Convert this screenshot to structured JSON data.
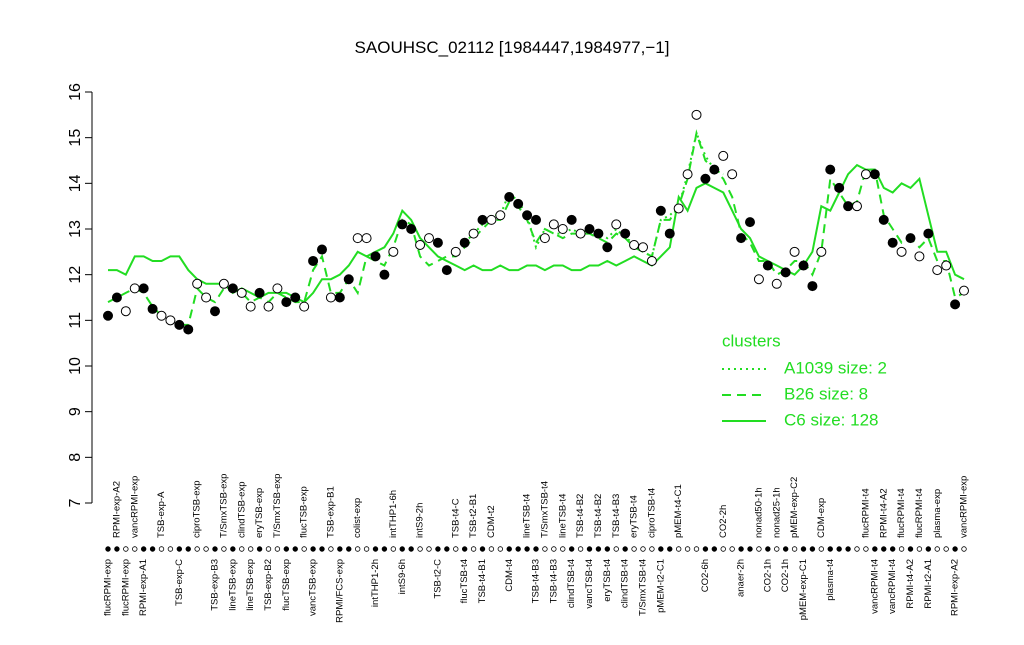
{
  "chart_data": {
    "type": "scatter",
    "title": "SAOUHSC_02112 [1984447,1984977,−1]",
    "ylim": [
      7,
      16
    ],
    "yticks": [
      7,
      8,
      9,
      10,
      11,
      12,
      13,
      14,
      15,
      16
    ],
    "categories": [
      "flucRPMI-exp",
      "RPMI-exp-A2",
      "flucRPMI-exp",
      "vancRPMI-exp",
      "RPMI-exp-A1",
      null,
      "TSB-exp-A",
      null,
      "TSB-exp-C",
      null,
      "ciproTSB-exp",
      null,
      "TSB-exp-B3",
      "T/SmxTSB-exp",
      "lineTSB-exp",
      "clindTSB-exp",
      "lineTSB-exp",
      "eryTSB-exp",
      "TSB-exp-B2",
      "T/SmxTSB-exp",
      "flucTSB-exp",
      null,
      "flucTSB-exp",
      "vancTSB-exp",
      null,
      "TSB-exp-B1",
      "RPMI/FCS-exp",
      null,
      "colist-exp",
      null,
      "intTHP1-2h",
      null,
      "intTHP1-6h",
      "intS9-6h",
      null,
      "intS9-2h",
      null,
      "TSB-t2-C",
      null,
      "TSB-t4-C",
      "flucTSB-t4",
      "TSB-t2-B1",
      "TSB-t4-B1",
      "CDM-t2",
      null,
      "CDM-t4",
      null,
      "lineTSB-t4",
      "TSB-t4-B3",
      "T/SmxTSB-t4",
      "TSB-t4-B3",
      "lineTSB-t4",
      "clindTSB-t4",
      "TSB-t4-B2",
      "vancTSB-t4",
      "TSB-t4-B2",
      "eryTSB-t4",
      "TSB-t4-B3",
      "clindTSB-t4",
      "eryTSB-t4",
      "T/SmxTSB-t4",
      "ciproTSB-t4",
      "pMEM-t2-C1",
      null,
      "pMEM-t4-C1",
      null,
      null,
      "CO2-6h",
      null,
      "CO2-2h",
      null,
      "anaer-2h",
      null,
      "nonad50-1h",
      "CO2-1h",
      "nonad25-1h",
      "CO2-1h",
      "pMEM-exp-C2",
      "pMEM-exp-C1",
      null,
      "CDM-exp",
      "plasma-t4",
      null,
      null,
      null,
      "flucRPMI-t4",
      "vancRPMI-t4",
      "RPMI-t4-A2",
      "vancRPMI-t4",
      "flucRPMI-t4",
      "RPMI-t4-A2",
      "flucRPMI-t4",
      "RPMI-t2-A1",
      "plasma-exp",
      null,
      "RPMI-exp-A2",
      "vancRPMI-exp"
    ],
    "values": [
      11.1,
      11.5,
      11.2,
      11.7,
      11.7,
      11.25,
      11.1,
      11.0,
      10.9,
      10.8,
      11.8,
      11.5,
      11.2,
      11.8,
      11.7,
      11.6,
      11.3,
      11.6,
      11.3,
      11.7,
      11.4,
      11.5,
      11.3,
      12.3,
      12.55,
      11.5,
      11.5,
      11.9,
      12.8,
      12.8,
      12.4,
      12.0,
      12.5,
      13.1,
      13.0,
      12.65,
      12.8,
      12.7,
      12.1,
      12.5,
      12.7,
      12.9,
      13.2,
      13.2,
      13.3,
      13.7,
      13.55,
      13.3,
      13.2,
      12.8,
      13.1,
      13.0,
      13.2,
      12.9,
      13.0,
      12.9,
      12.6,
      13.1,
      12.9,
      12.65,
      12.6,
      12.3,
      13.4,
      12.9,
      13.45,
      14.2,
      15.5,
      14.1,
      14.3,
      14.6,
      14.2,
      12.8,
      13.15,
      11.9,
      12.2,
      11.8,
      12.05,
      12.5,
      12.2,
      11.75,
      12.5,
      14.3,
      13.9,
      13.5,
      13.5,
      14.2,
      14.2,
      13.2,
      12.7,
      12.5,
      12.8,
      12.4,
      12.9,
      12.1,
      12.2,
      11.35,
      11.65
    ],
    "filled": [
      true,
      true,
      false,
      false,
      true,
      true,
      false,
      false,
      true,
      true,
      false,
      false,
      true,
      false,
      true,
      false,
      false,
      true,
      false,
      false,
      true,
      true,
      false,
      true,
      true,
      false,
      true,
      true,
      false,
      false,
      true,
      true,
      false,
      true,
      true,
      false,
      false,
      true,
      true,
      false,
      true,
      false,
      true,
      false,
      false,
      true,
      true,
      true,
      true,
      false,
      false,
      false,
      true,
      false,
      true,
      true,
      true,
      false,
      true,
      false,
      false,
      false,
      true,
      true,
      false,
      false,
      false,
      true,
      true,
      false,
      false,
      true,
      true,
      false,
      true,
      false,
      true,
      false,
      true,
      true,
      false,
      true,
      true,
      true,
      false,
      false,
      true,
      true,
      true,
      false,
      true,
      false,
      true,
      false,
      false,
      true,
      false
    ],
    "legend": {
      "title": "clusters",
      "color": "#22dd22",
      "series": [
        {
          "name": "A1039 size: 2",
          "style": "dotted",
          "values": [
            null,
            null,
            null,
            null,
            null,
            null,
            null,
            null,
            null,
            null,
            null,
            null,
            null,
            null,
            null,
            null,
            null,
            null,
            null,
            null,
            null,
            null,
            null,
            null,
            null,
            null,
            null,
            null,
            null,
            null,
            null,
            null,
            null,
            null,
            null,
            null,
            null,
            null,
            null,
            null,
            12.7,
            12.9,
            13.1,
            13.3,
            13.3,
            13.8,
            13.6,
            13.3,
            12.6,
            13.0,
            12.9,
            12.9,
            13.0,
            12.9,
            13.0,
            12.9,
            12.8,
            13.0,
            12.8,
            12.7,
            12.5,
            12.4,
            13.2,
            13.3,
            13.5,
            14.2,
            15.1,
            14.6,
            14.3,
            14.2,
            null,
            null,
            null,
            null,
            null,
            null,
            null,
            null,
            null,
            null,
            null,
            null,
            null,
            null,
            null,
            null,
            null,
            null,
            null,
            null,
            null,
            null,
            null,
            null,
            null,
            null,
            null
          ]
        },
        {
          "name": "B26 size: 8",
          "style": "dashed",
          "values": [
            11.4,
            11.5,
            11.6,
            11.7,
            11.6,
            11.3,
            11.1,
            11.0,
            10.9,
            10.9,
            11.7,
            11.5,
            11.4,
            11.7,
            11.7,
            11.6,
            11.4,
            11.5,
            11.4,
            11.6,
            11.5,
            11.4,
            11.4,
            12.1,
            12.4,
            11.6,
            11.6,
            11.9,
            11.6,
            12.4,
            12.3,
            12.2,
            12.6,
            13.2,
            13.1,
            12.4,
            12.2,
            12.3,
            12.4,
            12.4,
            12.6,
            12.8,
            13.0,
            13.2,
            13.2,
            13.6,
            13.5,
            13.2,
            12.7,
            13.0,
            12.9,
            12.8,
            12.9,
            12.9,
            12.9,
            12.8,
            12.7,
            12.9,
            12.8,
            12.6,
            12.5,
            12.4,
            13.2,
            13.2,
            13.5,
            14.1,
            15.1,
            14.5,
            14.3,
            14.1,
            13.7,
            12.9,
            12.7,
            12.3,
            12.3,
            12.0,
            12.1,
            12.3,
            12.3,
            12.0,
            12.5,
            14.1,
            13.8,
            13.5,
            13.6,
            14.3,
            14.3,
            13.3,
            13.0,
            12.7,
            12.8,
            12.6,
            12.8,
            12.3,
            12.3,
            11.5,
            11.6
          ]
        },
        {
          "name": "C6 size: 128",
          "style": "solid",
          "values": [
            12.1,
            12.1,
            12.0,
            12.4,
            12.4,
            12.3,
            12.3,
            12.4,
            12.4,
            12.1,
            11.9,
            11.8,
            11.8,
            11.8,
            11.6,
            11.7,
            11.6,
            11.5,
            11.6,
            11.6,
            11.6,
            11.5,
            11.4,
            11.6,
            11.9,
            11.9,
            12.0,
            12.2,
            12.5,
            12.4,
            12.5,
            12.6,
            12.9,
            13.4,
            13.2,
            12.8,
            12.6,
            12.4,
            12.3,
            12.2,
            12.1,
            12.2,
            12.1,
            12.1,
            12.2,
            12.1,
            12.1,
            12.2,
            12.2,
            12.1,
            12.2,
            12.2,
            12.1,
            12.1,
            12.2,
            12.2,
            12.3,
            12.2,
            12.3,
            12.4,
            12.3,
            12.2,
            12.4,
            12.6,
            13.7,
            13.4,
            13.9,
            14.0,
            13.9,
            13.8,
            13.4,
            13.0,
            12.8,
            12.4,
            12.3,
            12.2,
            12.1,
            12.0,
            12.2,
            12.5,
            13.5,
            13.4,
            13.8,
            14.2,
            14.4,
            14.3,
            14.3,
            13.9,
            13.8,
            14.0,
            13.9,
            14.1,
            13.3,
            12.5,
            12.5,
            12.0,
            11.9
          ]
        }
      ]
    }
  }
}
